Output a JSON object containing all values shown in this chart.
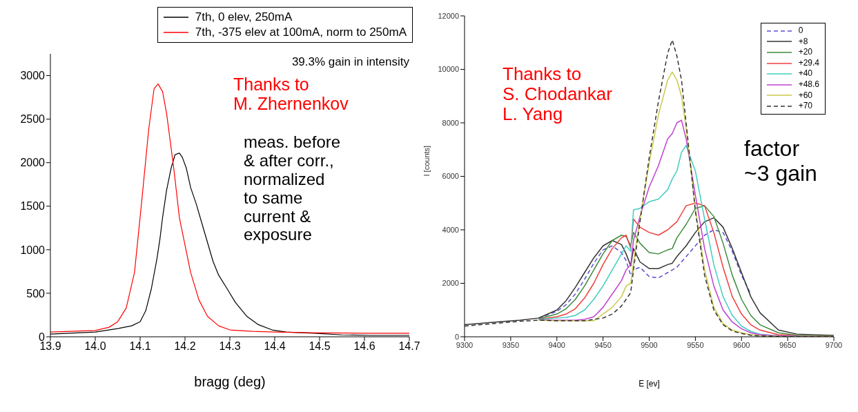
{
  "chart_data": [
    {
      "type": "line",
      "xlabel": "bragg (deg)",
      "xlim": [
        13.9,
        14.7
      ],
      "xticks": [
        {
          "value": 13.9,
          "label": "13.9"
        },
        {
          "value": 14,
          "label": "14.0"
        },
        {
          "value": 14.1,
          "label": "14.1"
        },
        {
          "value": 14.2,
          "label": "14.2"
        },
        {
          "value": 14.3,
          "label": "14.3"
        },
        {
          "value": 14.4,
          "label": "14.4"
        },
        {
          "value": 14.5,
          "label": "14.5"
        },
        {
          "value": 14.6,
          "label": "14.6"
        },
        {
          "value": 14.7,
          "label": "14.7"
        }
      ],
      "ylim": [
        0,
        3250
      ],
      "yticks": [
        0,
        500,
        1000,
        1500,
        2000,
        2500,
        3000
      ],
      "legend": "top right",
      "annotations": [
        "39.3% gain in intensity",
        "Thanks to\nM. Zhernenkov",
        "meas. before\n& after corr.,\nnormalized\nto same\ncurrent &\nexposure"
      ],
      "series": [
        {
          "name": "7th, 0 elev, 250mA",
          "color": "#000000",
          "x": [
            13.9,
            14.0,
            14.05,
            14.081,
            14.1,
            14.1125,
            14.125,
            14.1375,
            14.144,
            14.15,
            14.159,
            14.169,
            14.178,
            14.1875,
            14.194,
            14.203,
            14.2125,
            14.225,
            14.2375,
            14.25,
            14.2625,
            14.275,
            14.294,
            14.3125,
            14.3375,
            14.3625,
            14.394,
            14.425,
            14.4875,
            14.55,
            14.6125,
            14.7
          ],
          "values": [
            31,
            54,
            94,
            126,
            173,
            299,
            551,
            897,
            1117,
            1369,
            1684,
            1936,
            2093,
            2109,
            2062,
            1936,
            1715,
            1527,
            1306,
            1086,
            866,
            708,
            551,
            393,
            236,
            142,
            79,
            54,
            41,
            22,
            16,
            16
          ]
        },
        {
          "name": "7th, -375 elev at 100mA, norm to 250mA",
          "color": "#ff0000",
          "x": [
            13.9,
            14.0,
            14.031,
            14.05,
            14.069,
            14.0875,
            14.103,
            14.119,
            14.131,
            14.14,
            14.15,
            14.159,
            14.175,
            14.1875,
            14.2,
            14.2125,
            14.231,
            14.25,
            14.275,
            14.3,
            14.35,
            14.4,
            14.5,
            14.6,
            14.7
          ],
          "values": [
            55,
            72,
            110,
            173,
            330,
            740,
            1527,
            2376,
            2848,
            2904,
            2817,
            2565,
            1935,
            1369,
            1054,
            740,
            425,
            236,
            126,
            79,
            63,
            54,
            45,
            41,
            41
          ]
        }
      ]
    },
    {
      "type": "line",
      "xlabel": "E [ev]",
      "ylabel": "I [counts]",
      "xlim": [
        9300,
        9700
      ],
      "xticks": [
        9300,
        9350,
        9400,
        9450,
        9500,
        9550,
        9600,
        9650,
        9700
      ],
      "ylim": [
        0,
        12000
      ],
      "yticks": [
        0,
        2000,
        4000,
        6000,
        8000,
        10000,
        12000
      ],
      "legend": "top right",
      "annotations": [
        "Thanks to\nS. Chodankar\nL. Yang",
        "factor\n~3 gain"
      ],
      "x": [
        9300,
        9320,
        9340,
        9360,
        9380,
        9400,
        9410,
        9420,
        9430,
        9440,
        9450,
        9460,
        9470,
        9475,
        9480,
        9483,
        9490,
        9500,
        9510,
        9520,
        9525,
        9530,
        9535,
        9540,
        9550,
        9560,
        9570,
        9580,
        9590,
        9600,
        9610,
        9620,
        9640,
        9660,
        9700
      ],
      "series": [
        {
          "name": "0",
          "color": "#5b4fd0",
          "line_style": "dashed",
          "values": [
            null,
            null,
            null,
            null,
            700,
            950,
            1200,
            1600,
            2150,
            2750,
            3250,
            3400,
            3150,
            2850,
            2300,
            2500,
            2600,
            2250,
            2200,
            2400,
            2500,
            2600,
            2800,
            3000,
            3400,
            3800,
            4000,
            3900,
            3200,
            2300,
            1600,
            null,
            null,
            null,
            null
          ]
        },
        {
          "name": "+8",
          "color": "#333333",
          "values": [
            450,
            510,
            570,
            620,
            700,
            1000,
            1350,
            1850,
            2400,
            2950,
            3400,
            3600,
            3450,
            3100,
            2650,
            3300,
            2800,
            2550,
            2550,
            2700,
            2750,
            3000,
            3200,
            3400,
            3900,
            4300,
            4450,
            4100,
            3300,
            2400,
            1500,
            900,
            250,
            100,
            50
          ]
        },
        {
          "name": "+20",
          "color": "#3a8a3a",
          "values": [
            null,
            null,
            null,
            null,
            680,
            850,
            1050,
            1400,
            1900,
            2500,
            3100,
            3600,
            3800,
            3750,
            3400,
            3900,
            3500,
            3150,
            3100,
            3250,
            3300,
            3700,
            3950,
            4200,
            4800,
            4900,
            4500,
            3500,
            2300,
            1400,
            800,
            450,
            150,
            60,
            30
          ]
        },
        {
          "name": "+29.4",
          "color": "#f03c3c",
          "values": [
            null,
            null,
            null,
            null,
            660,
            750,
            850,
            1050,
            1450,
            2000,
            2700,
            3300,
            3700,
            3800,
            3300,
            4400,
            4100,
            3900,
            3800,
            4000,
            4150,
            4300,
            4600,
            4900,
            5000,
            4900,
            3900,
            2600,
            1500,
            850,
            450,
            250,
            80,
            40,
            20
          ]
        },
        {
          "name": "+40",
          "color": "#40ccc0",
          "values": [
            null,
            null,
            null,
            null,
            650,
            700,
            720,
            800,
            1000,
            1400,
            1900,
            2500,
            3100,
            3400,
            3200,
            4750,
            4800,
            5050,
            5150,
            5500,
            5900,
            6200,
            6900,
            7150,
            6200,
            4400,
            2700,
            1500,
            800,
            400,
            200,
            100,
            30,
            20,
            10
          ]
        },
        {
          "name": "+48.6",
          "color": "#c040d0",
          "values": [
            null,
            null,
            null,
            null,
            640,
            620,
            620,
            620,
            650,
            750,
            1100,
            1600,
            2100,
            2500,
            2700,
            3600,
            4500,
            5600,
            6400,
            7400,
            7600,
            8000,
            8100,
            7400,
            5300,
            3300,
            1900,
            1000,
            550,
            300,
            150,
            80,
            30,
            10,
            0
          ]
        },
        {
          "name": "+60",
          "color": "#c8c84a",
          "values": [
            null,
            null,
            null,
            null,
            620,
            600,
            600,
            600,
            600,
            600,
            850,
            1100,
            1500,
            1900,
            2000,
            2800,
            4400,
            6500,
            8300,
            9600,
            9900,
            9600,
            9000,
            7800,
            4800,
            2500,
            1100,
            500,
            250,
            150,
            80,
            40,
            10,
            0,
            0
          ]
        },
        {
          "name": "+70",
          "color": "#333333",
          "line_style": "dashed",
          "values": [
            400,
            460,
            520,
            580,
            620,
            600,
            600,
            600,
            600,
            650,
            700,
            850,
            1150,
            1400,
            1650,
            2500,
            4300,
            6700,
            8800,
            10600,
            11100,
            10500,
            9600,
            8000,
            4700,
            2300,
            1000,
            450,
            220,
            120,
            60,
            30,
            10,
            0,
            0
          ]
        }
      ]
    }
  ]
}
